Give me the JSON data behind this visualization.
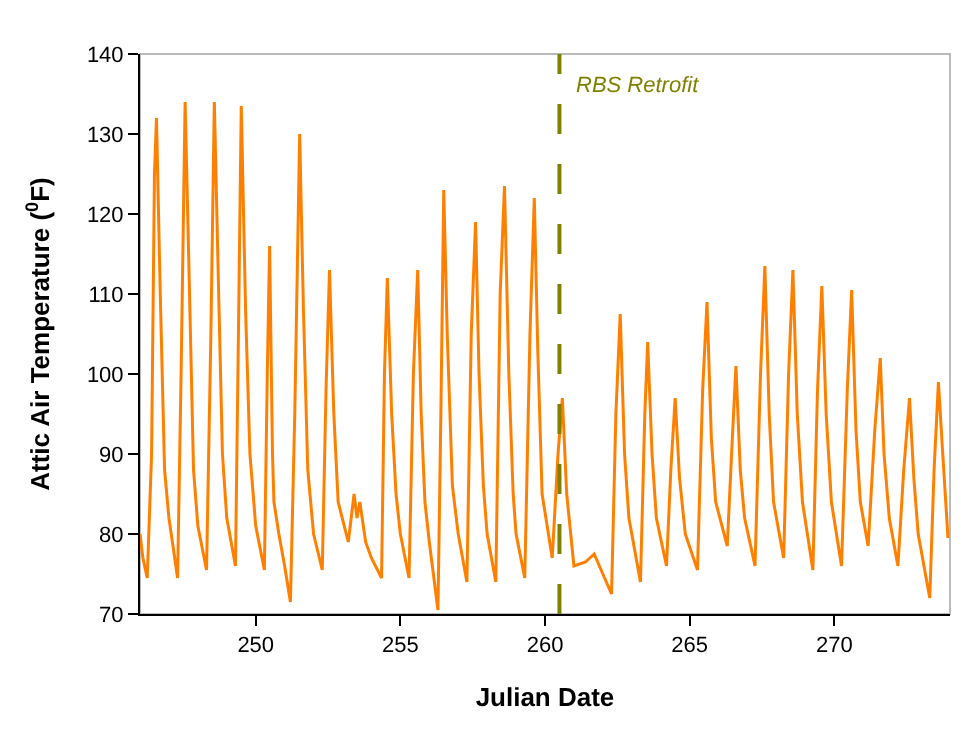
{
  "chart_data": {
    "type": "line",
    "xlabel": "Julian Date",
    "ylabel": "Attic Air Temperature ($^{0}$F)",
    "xlim": [
      246,
      274
    ],
    "xticks": [
      250,
      255,
      260,
      265,
      270
    ],
    "ylim": [
      70,
      140
    ],
    "yticks": [
      70,
      80,
      90,
      100,
      110,
      120,
      130,
      140
    ],
    "grid": false,
    "ref_lines": [
      {
        "axis": "x",
        "value": 260.5,
        "label": "RBS Retrofit",
        "color": "#808000",
        "line_style": "dashed"
      }
    ],
    "series": [
      {
        "color": "#ff8000",
        "x": [
          246.0,
          246.1,
          246.25,
          246.4,
          246.5,
          246.57,
          246.7,
          246.85,
          247.0,
          247.3,
          247.42,
          247.56,
          247.7,
          247.85,
          248.0,
          248.3,
          248.45,
          248.57,
          248.72,
          248.85,
          249.0,
          249.3,
          249.42,
          249.5,
          249.65,
          249.8,
          250.0,
          250.3,
          250.4,
          250.48,
          250.58,
          250.63,
          250.8,
          251.0,
          251.2,
          251.35,
          251.52,
          251.65,
          251.8,
          252.0,
          252.3,
          252.43,
          252.55,
          252.7,
          252.85,
          253.2,
          253.4,
          253.5,
          253.6,
          253.8,
          254.0,
          254.35,
          254.45,
          254.55,
          254.7,
          254.85,
          255.0,
          255.3,
          255.45,
          255.6,
          255.72,
          255.85,
          256.0,
          256.3,
          256.4,
          256.5,
          256.62,
          256.8,
          257.0,
          257.3,
          257.45,
          257.6,
          257.72,
          257.87,
          258.0,
          258.3,
          258.45,
          258.6,
          258.75,
          258.9,
          259.0,
          259.3,
          259.48,
          259.63,
          259.75,
          259.9,
          260.25,
          260.45,
          260.6,
          260.75,
          261.0,
          261.4,
          261.7,
          262.0,
          262.3,
          262.45,
          262.6,
          262.75,
          262.9,
          263.3,
          263.45,
          263.55,
          263.7,
          263.85,
          264.2,
          264.35,
          264.5,
          264.65,
          264.85,
          265.27,
          265.45,
          265.6,
          265.75,
          265.9,
          266.3,
          266.45,
          266.6,
          266.75,
          266.9,
          267.26,
          267.45,
          267.6,
          267.75,
          267.9,
          268.25,
          268.42,
          268.57,
          268.72,
          268.9,
          269.26,
          269.42,
          269.57,
          269.72,
          269.9,
          270.25,
          270.45,
          270.6,
          270.75,
          270.9,
          271.17,
          271.4,
          271.59,
          271.72,
          271.9,
          272.2,
          272.4,
          272.6,
          272.75,
          272.9,
          273.3,
          273.45,
          273.6,
          273.75,
          273.93
        ],
        "values": [
          80,
          77,
          74.5,
          90,
          125,
          132,
          110,
          88,
          82,
          74.5,
          100,
          134,
          112,
          88,
          81,
          75.5,
          105,
          134,
          110,
          90,
          82,
          76,
          110,
          133.5,
          108,
          90,
          81,
          75.5,
          100,
          116,
          90,
          84,
          80,
          76,
          71.5,
          95,
          130,
          108,
          88,
          80,
          75.5,
          98,
          113,
          95,
          84,
          79,
          85,
          82,
          84,
          79,
          77,
          74.5,
          100,
          112,
          95,
          85,
          80,
          74.5,
          100,
          113,
          95,
          84,
          79,
          70.5,
          95,
          123,
          105,
          86,
          80,
          74,
          105,
          119,
          100,
          86,
          80,
          74,
          110,
          123.5,
          100,
          85,
          80,
          74.5,
          105,
          122,
          103,
          85,
          77,
          90,
          97,
          85,
          76,
          76.5,
          77.5,
          75,
          72.5,
          95,
          107.5,
          90,
          82,
          74,
          95,
          104,
          90,
          82,
          76,
          88,
          97,
          87,
          80,
          75.5,
          98,
          109,
          92,
          84,
          78.5,
          90,
          101,
          88,
          82,
          76,
          100,
          113.5,
          95,
          84,
          77,
          100,
          113,
          95,
          84,
          75.5,
          98,
          111,
          95,
          84,
          76,
          98,
          110.5,
          93,
          84,
          78.5,
          93,
          102,
          90,
          82,
          76,
          88,
          97,
          87,
          80,
          72,
          88,
          99,
          90,
          79.5
        ]
      }
    ]
  }
}
